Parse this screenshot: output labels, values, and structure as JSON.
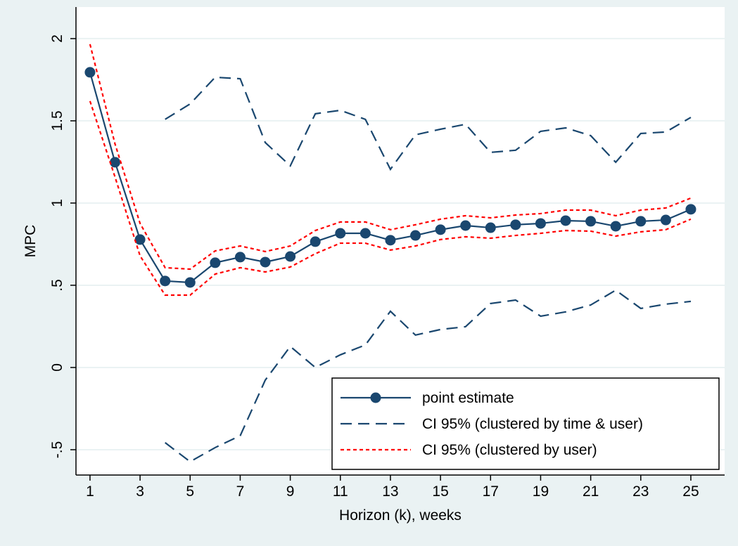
{
  "chart_data": {
    "type": "line",
    "xlabel": "Horizon (k), weeks",
    "ylabel": "MPC",
    "x": [
      1,
      2,
      3,
      4,
      5,
      6,
      7,
      8,
      9,
      10,
      11,
      12,
      13,
      14,
      15,
      16,
      17,
      18,
      19,
      20,
      21,
      22,
      23,
      24,
      25
    ],
    "xlim": [
      0.44,
      26.35
    ],
    "xticks": [
      1,
      3,
      5,
      7,
      9,
      11,
      13,
      15,
      17,
      19,
      21,
      23,
      25
    ],
    "ylim": [
      -0.654,
      2.192
    ],
    "yticks": [
      {
        "value": -0.5,
        "label": "-.5"
      },
      0,
      {
        "value": 0.5,
        "label": ".5"
      },
      1,
      1.5,
      2
    ],
    "grid": true,
    "legend": "bottom-right",
    "series": [
      {
        "name": "point estimate",
        "color": "#1a476f",
        "style": "solid-marker",
        "values": [
          1.795,
          1.248,
          0.778,
          0.526,
          0.517,
          0.637,
          0.671,
          0.641,
          0.675,
          0.765,
          0.816,
          0.816,
          0.774,
          0.803,
          0.838,
          0.863,
          0.85,
          0.868,
          0.876,
          0.893,
          0.889,
          0.859,
          0.889,
          0.897,
          0.962
        ]
      },
      {
        "name": "CI 95% (clustered by time & user)",
        "color": "#1a476f",
        "style": "dash",
        "upper": [
          null,
          null,
          null,
          1.509,
          1.603,
          1.765,
          1.756,
          1.368,
          1.226,
          1.543,
          1.564,
          1.509,
          1.205,
          1.415,
          1.449,
          1.479,
          1.308,
          1.321,
          1.436,
          1.457,
          1.41,
          1.248,
          1.423,
          1.432,
          1.521
        ],
        "lower": [
          null,
          null,
          null,
          -0.457,
          -0.573,
          -0.487,
          -0.415,
          -0.077,
          0.128,
          0.0,
          0.077,
          0.137,
          0.342,
          0.197,
          0.231,
          0.248,
          0.389,
          0.41,
          0.312,
          0.338,
          0.38,
          0.47,
          0.359,
          0.385,
          0.402
        ]
      },
      {
        "name": "CI 95% (clustered by user)",
        "color": "#ff0000",
        "style": "dot",
        "upper": [
          1.966,
          1.359,
          0.876,
          0.607,
          0.598,
          0.709,
          0.739,
          0.705,
          0.739,
          0.833,
          0.885,
          0.885,
          0.838,
          0.868,
          0.902,
          0.923,
          0.91,
          0.927,
          0.936,
          0.957,
          0.957,
          0.923,
          0.957,
          0.97,
          1.03
        ],
        "lower": [
          1.62,
          1.158,
          0.679,
          0.44,
          0.44,
          0.568,
          0.607,
          0.581,
          0.611,
          0.692,
          0.756,
          0.756,
          0.714,
          0.739,
          0.778,
          0.795,
          0.786,
          0.803,
          0.816,
          0.833,
          0.829,
          0.799,
          0.825,
          0.838,
          0.902
        ]
      }
    ]
  }
}
